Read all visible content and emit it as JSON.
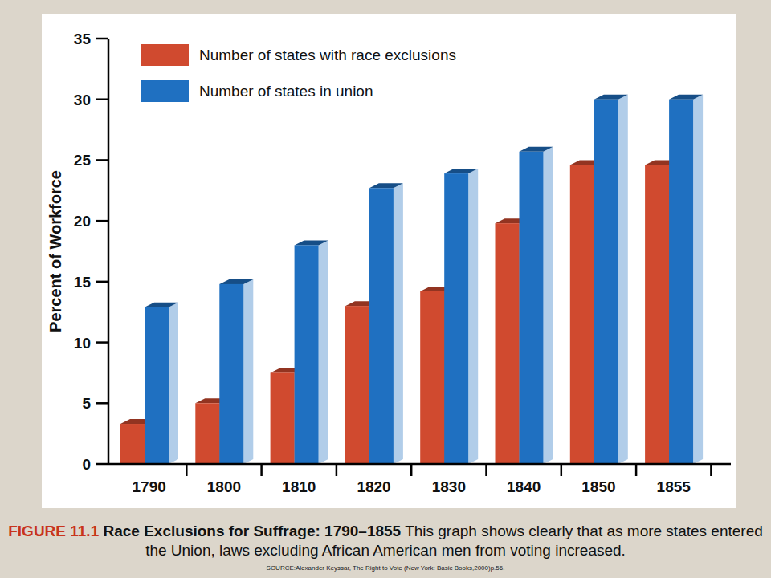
{
  "chart_data": {
    "type": "bar",
    "figure_label": "FIGURE 11.1",
    "title": "Race Exclusions for Suffrage: 1790–1855",
    "caption": "This graph shows clearly that as more states entered the Union, laws excluding African American men from voting increased.",
    "source": "SOURCE:Alexander Keyssar, The Right to Vote (New York: Basic Books,2000)p.56.",
    "y_label": "Percent of Workforce",
    "categories": [
      "1790",
      "1800",
      "1810",
      "1820",
      "1830",
      "1840",
      "1850",
      "1855"
    ],
    "series": [
      {
        "name": "Number of states with race exclusions",
        "color": "#d04a2f",
        "values": [
          3.3,
          5,
          7.5,
          13,
          14.2,
          19.8,
          24.6,
          24.6
        ]
      },
      {
        "name": "Number of states in union",
        "color": "#1f70c1",
        "values": [
          12.9,
          14.8,
          18,
          22.7,
          23.9,
          25.7,
          30,
          30
        ]
      }
    ],
    "ylim": [
      0,
      35
    ],
    "yticks": [
      0,
      5,
      10,
      15,
      20,
      25,
      30,
      35
    ],
    "grid": false,
    "legend": "top-left"
  }
}
